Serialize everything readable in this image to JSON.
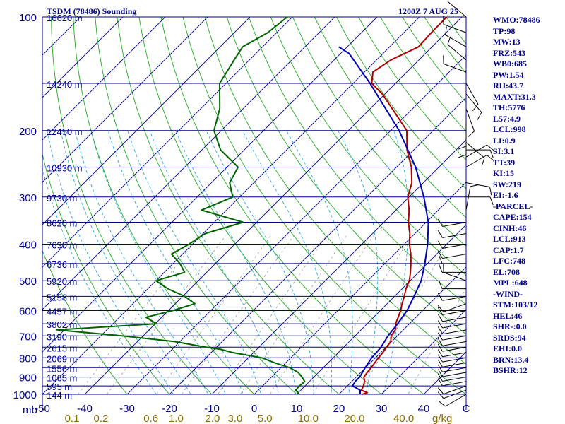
{
  "header": {
    "title_left": "TSDM (78486) Sounding",
    "title_right": "1200Z  7 AUG 25"
  },
  "indices": [
    "WMO:78486",
    "TP:98",
    "MW:13",
    "FRZ:543",
    "WB0:685",
    "PW:1.54",
    "RH:43.7",
    "MAXT:31.3",
    "TH:5776",
    "L57:4.9",
    "LCL:998",
    "LI:0.9",
    "SI:3.1",
    "TT:39",
    "KI:15",
    "SW:219",
    "EI:-1.6",
    "-PARCEL-",
    "CAPE:154",
    "CINH:46",
    "LCL:913",
    "CAP:1.7",
    "LFC:748",
    "EL:708",
    "MPL:648",
    "-WIND-",
    "STM:103/12",
    "HEL:46",
    "SHR-:0.0",
    "SRDS:94",
    "EHI:0.0",
    "BRN:13.4",
    "BSHR:12"
  ],
  "chart_data": {
    "type": "line",
    "subtype": "skew-T log-P sounding",
    "pressure_axis": {
      "scale": "log",
      "ylim": [
        1000,
        100
      ],
      "tick_labels": [
        "100",
        "200",
        "300",
        "400",
        "500",
        "600",
        "700",
        "800",
        "900",
        "1000"
      ],
      "unit_label": "mb"
    },
    "temperature_axis": {
      "xlim": [
        -50,
        50
      ],
      "tick_labels": [
        "-50",
        "-40",
        "-30",
        "-20",
        "-10",
        "0",
        "10",
        "20",
        "30",
        "40",
        "C"
      ]
    },
    "mixing_ratio_labels": [
      "0.1",
      "0.2",
      "0.6",
      "1.0",
      "2.0",
      "3.0",
      "5.0",
      "10.0",
      "20.0",
      "40.0"
    ],
    "mixing_ratio_unit": "g/kg",
    "heights": [
      {
        "p": 100,
        "label": "16620 m"
      },
      {
        "p": 150,
        "label": "14240 m"
      },
      {
        "p": 200,
        "label": "12450 m"
      },
      {
        "p": 250,
        "label": "10930 m"
      },
      {
        "p": 300,
        "label": "9730 m"
      },
      {
        "p": 350,
        "label": "8620 m"
      },
      {
        "p": 400,
        "label": "7630 m"
      },
      {
        "p": 450,
        "label": "6736 m"
      },
      {
        "p": 500,
        "label": "5920 m"
      },
      {
        "p": 550,
        "label": "5158 m"
      },
      {
        "p": 600,
        "label": "4457 m"
      },
      {
        "p": 650,
        "label": "3802 m"
      },
      {
        "p": 700,
        "label": "3190 m"
      },
      {
        "p": 750,
        "label": "2615 m"
      },
      {
        "p": 800,
        "label": "2069 m"
      },
      {
        "p": 850,
        "label": "1556 m"
      },
      {
        "p": 900,
        "label": "1065 m"
      },
      {
        "p": 950,
        "label": "595 m"
      },
      {
        "p": 1000,
        "label": "144 m"
      }
    ],
    "series": [
      {
        "kind": "temperature",
        "color": "#b00000",
        "points": [
          [
            1000,
            25.5
          ],
          [
            990,
            26.3
          ],
          [
            975,
            24.3
          ],
          [
            950,
            23.8
          ],
          [
            925,
            23.0
          ],
          [
            900,
            21.8
          ],
          [
            875,
            21.5
          ],
          [
            850,
            21.3
          ],
          [
            825,
            21.0
          ],
          [
            800,
            20.7
          ],
          [
            775,
            20.5
          ],
          [
            750,
            20.1
          ],
          [
            725,
            19.8
          ],
          [
            700,
            18.5
          ],
          [
            675,
            18.1
          ],
          [
            650,
            16.7
          ],
          [
            625,
            15.8
          ],
          [
            600,
            14.8
          ],
          [
            575,
            13.5
          ],
          [
            550,
            12.3
          ],
          [
            525,
            10.9
          ],
          [
            500,
            9.8
          ],
          [
            475,
            8.1
          ],
          [
            450,
            6.1
          ],
          [
            425,
            3.9
          ],
          [
            400,
            1.2
          ],
          [
            375,
            -1.2
          ],
          [
            350,
            -4.2
          ],
          [
            325,
            -6.9
          ],
          [
            300,
            -10.3
          ],
          [
            275,
            -12.7
          ],
          [
            250,
            -16.5
          ],
          [
            225,
            -21.6
          ],
          [
            200,
            -26.2
          ],
          [
            175,
            -34.8
          ],
          [
            160,
            -40.6
          ],
          [
            150,
            -45.6
          ],
          [
            140,
            -48.0
          ],
          [
            130,
            -46.6
          ],
          [
            120,
            -43.2
          ],
          [
            110,
            -43.5
          ],
          [
            100,
            -43.6
          ]
        ]
      },
      {
        "kind": "dewpoint",
        "color": "#006400",
        "points": [
          [
            1000,
            10.5
          ],
          [
            990,
            10.0
          ],
          [
            975,
            8.8
          ],
          [
            950,
            8.7
          ],
          [
            925,
            8.9
          ],
          [
            900,
            7.2
          ],
          [
            875,
            5.2
          ],
          [
            850,
            2.1
          ],
          [
            825,
            -2.6
          ],
          [
            800,
            -6.8
          ],
          [
            775,
            -15.0
          ],
          [
            760,
            -18.5
          ],
          [
            750,
            -22.5
          ],
          [
            725,
            -31.2
          ],
          [
            700,
            -45.0
          ],
          [
            675,
            -61.8
          ],
          [
            650,
            -39.7
          ],
          [
            625,
            -43.7
          ],
          [
            600,
            -39.0
          ],
          [
            575,
            -35.4
          ],
          [
            550,
            -39.5
          ],
          [
            525,
            -45.3
          ],
          [
            500,
            -50.0
          ],
          [
            475,
            -45.2
          ],
          [
            450,
            -48.4
          ],
          [
            425,
            -52.6
          ],
          [
            400,
            -50.8
          ],
          [
            375,
            -49.5
          ],
          [
            350,
            -43.2
          ],
          [
            325,
            -55.9
          ],
          [
            300,
            -51.6
          ],
          [
            275,
            -55.7
          ],
          [
            250,
            -57.4
          ],
          [
            225,
            -65.6
          ],
          [
            200,
            -71.7
          ],
          [
            175,
            -75.5
          ],
          [
            150,
            -81.5
          ],
          [
            130,
            -83.6
          ],
          [
            120,
            -84.7
          ],
          [
            110,
            -82.1
          ],
          [
            100,
            -81.2
          ]
        ]
      },
      {
        "kind": "parcel",
        "color": "#0000b4",
        "points": [
          [
            1000,
            25.0
          ],
          [
            975,
            24.0
          ],
          [
            950,
            21.2
          ],
          [
            925,
            20.8
          ],
          [
            900,
            20.8
          ],
          [
            850,
            19.9
          ],
          [
            800,
            19.1
          ],
          [
            750,
            18.8
          ],
          [
            700,
            17.8
          ],
          [
            650,
            17.2
          ],
          [
            600,
            16.3
          ],
          [
            550,
            14.6
          ],
          [
            500,
            12.6
          ],
          [
            450,
            9.4
          ],
          [
            400,
            5.5
          ],
          [
            350,
            0.5
          ],
          [
            300,
            -6.5
          ],
          [
            250,
            -15.5
          ],
          [
            200,
            -28.0
          ],
          [
            150,
            -46.0
          ],
          [
            125,
            -58.0
          ],
          [
            120,
            -62.0
          ]
        ]
      }
    ],
    "wind_barbs": [
      {
        "p": 1000,
        "dir": 240,
        "spd": 10
      },
      {
        "p": 975,
        "dir": 250,
        "spd": 10
      },
      {
        "p": 950,
        "dir": 250,
        "spd": 10
      },
      {
        "p": 925,
        "dir": 260,
        "spd": 10
      },
      {
        "p": 900,
        "dir": 260,
        "spd": 10
      },
      {
        "p": 875,
        "dir": 260,
        "spd": 10
      },
      {
        "p": 850,
        "dir": 260,
        "spd": 10
      },
      {
        "p": 825,
        "dir": 260,
        "spd": 10
      },
      {
        "p": 800,
        "dir": 260,
        "spd": 10
      },
      {
        "p": 775,
        "dir": 260,
        "spd": 10
      },
      {
        "p": 750,
        "dir": 260,
        "spd": 10
      },
      {
        "p": 725,
        "dir": 260,
        "spd": 10
      },
      {
        "p": 700,
        "dir": 260,
        "spd": 10
      },
      {
        "p": 675,
        "dir": 260,
        "spd": 10
      },
      {
        "p": 650,
        "dir": 260,
        "spd": 10
      },
      {
        "p": 625,
        "dir": 260,
        "spd": 10
      },
      {
        "p": 600,
        "dir": 260,
        "spd": 10
      },
      {
        "p": 575,
        "dir": 250,
        "spd": 10
      },
      {
        "p": 550,
        "dir": 260,
        "spd": 10
      },
      {
        "p": 525,
        "dir": 270,
        "spd": 10
      },
      {
        "p": 500,
        "dir": 290,
        "spd": 10
      },
      {
        "p": 475,
        "dir": 270,
        "spd": 10
      },
      {
        "p": 450,
        "dir": 270,
        "spd": 10
      },
      {
        "p": 425,
        "dir": 260,
        "spd": 10
      },
      {
        "p": 400,
        "dir": 260,
        "spd": 10
      },
      {
        "p": 375,
        "dir": 260,
        "spd": 10
      },
      {
        "p": 350,
        "dir": 260,
        "spd": 10
      },
      {
        "p": 325,
        "dir": 10,
        "spd": 10
      },
      {
        "p": 300,
        "dir": 90,
        "spd": 10
      },
      {
        "p": 275,
        "dir": 100,
        "spd": 10
      },
      {
        "p": 250,
        "dir": 60,
        "spd": 10
      },
      {
        "p": 235,
        "dir": 60,
        "spd": 10
      },
      {
        "p": 225,
        "dir": 90,
        "spd": 10
      },
      {
        "p": 215,
        "dir": 130,
        "spd": 10
      },
      {
        "p": 200,
        "dir": 180,
        "spd": 10
      },
      {
        "p": 190,
        "dir": 180,
        "spd": 10
      },
      {
        "p": 175,
        "dir": 160,
        "spd": 10
      },
      {
        "p": 160,
        "dir": 140,
        "spd": 10
      },
      {
        "p": 150,
        "dir": 150,
        "spd": 10
      },
      {
        "p": 140,
        "dir": 290,
        "spd": 10
      },
      {
        "p": 130,
        "dir": 310,
        "spd": 10
      },
      {
        "p": 120,
        "dir": 300,
        "spd": 10
      },
      {
        "p": 110,
        "dir": 290,
        "spd": 10
      },
      {
        "p": 100,
        "dir": 310,
        "spd": 10
      }
    ],
    "colors": {
      "isobar": "#00008b",
      "isotherm": "#00008b",
      "dry_adiabat": "#22aa22",
      "moist_adiabat": "#29a8e0",
      "mixing_ratio": "#999999",
      "label": "#00008b",
      "mixing_label": "#8a6d00",
      "barb": "#000000"
    }
  }
}
